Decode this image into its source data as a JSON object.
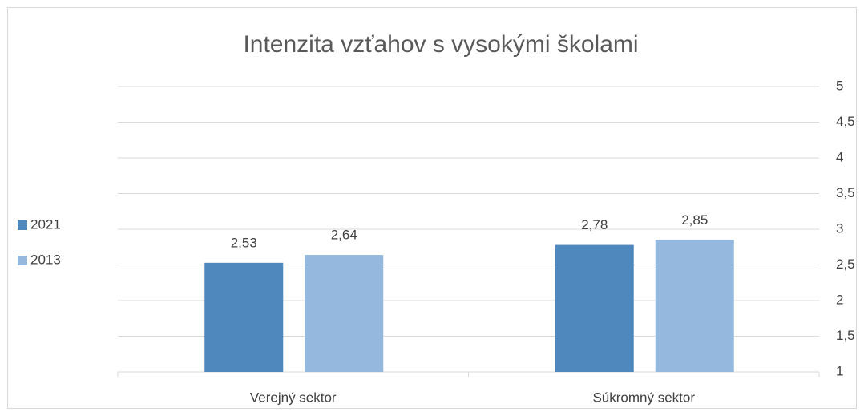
{
  "chart_data": {
    "type": "bar",
    "title": "Intenzita vzťahov s vysokými školami",
    "categories": [
      "Verejný sektor",
      "Súkromný sektor"
    ],
    "series": [
      {
        "name": "2021",
        "color": "#4f88bc",
        "values": [
          2.53,
          2.78
        ],
        "value_labels": [
          "2,53",
          "2,78"
        ]
      },
      {
        "name": "2013",
        "color": "#95b8de",
        "values": [
          2.64,
          2.85
        ],
        "value_labels": [
          "2,64",
          "2,85"
        ]
      }
    ],
    "ylim": [
      1,
      5
    ],
    "yticks": [
      1,
      {
        "value": 1.5,
        "label": "1,5"
      },
      2,
      {
        "value": 2.5,
        "label": "2,5"
      },
      3,
      {
        "value": 3.5,
        "label": "3,5"
      },
      4,
      {
        "value": 4.5,
        "label": "4,5"
      },
      5
    ],
    "grid": true,
    "y_axis_side": "right",
    "legend": "left"
  }
}
